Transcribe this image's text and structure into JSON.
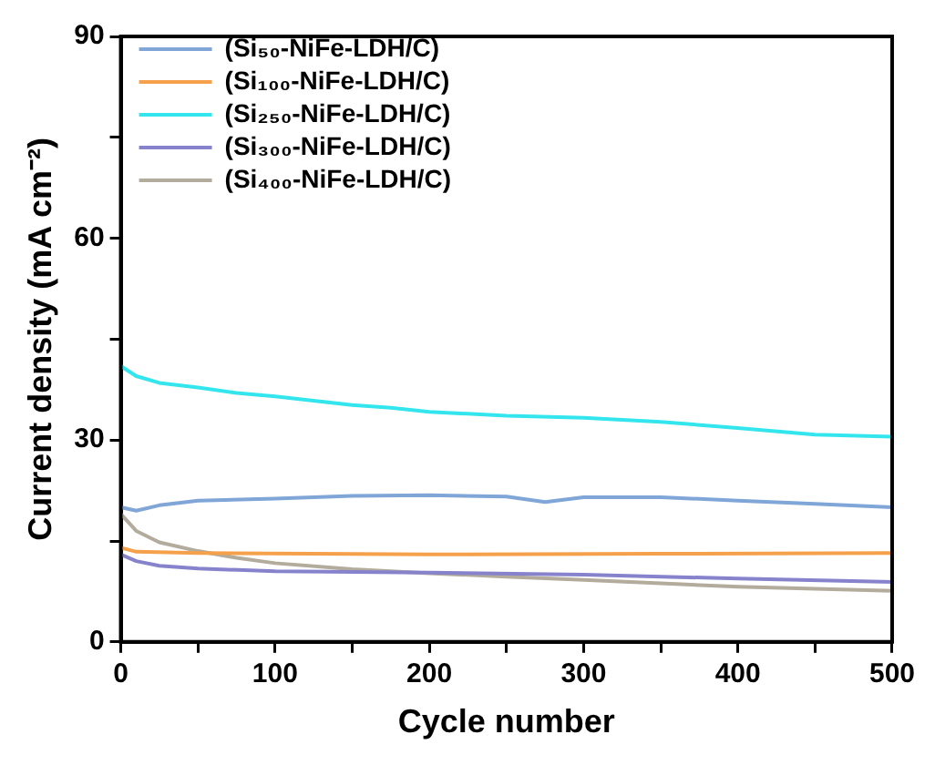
{
  "chart_data": {
    "type": "line",
    "xlabel": "Cycle number",
    "ylabel": "Current density (mA cm⁻²)",
    "xlim": [
      0,
      500
    ],
    "ylim": [
      0,
      90
    ],
    "xticks": [
      0,
      {
        "value": 50,
        "label": null
      },
      100,
      {
        "value": 150,
        "label": null
      },
      200,
      {
        "value": 250,
        "label": null
      },
      300,
      {
        "value": 350,
        "label": null
      },
      400,
      {
        "value": 450,
        "label": null
      },
      500
    ],
    "yticks": [
      0,
      {
        "value": 15,
        "label": null
      },
      30,
      {
        "value": 45,
        "label": null
      },
      60,
      {
        "value": 75,
        "label": null
      },
      90
    ],
    "grid": false,
    "legend": "top left",
    "marker": "none",
    "line_style": "solid",
    "series": [
      {
        "name": "(Si₅₀-NiFe-LDH/C)",
        "color": "#7fa6d6",
        "x": [
          0,
          10,
          25,
          50,
          100,
          150,
          200,
          250,
          275,
          300,
          350,
          400,
          450,
          500
        ],
        "values": [
          20,
          19.5,
          20.3,
          21,
          21.3,
          21.7,
          21.8,
          21.6,
          20.8,
          21.5,
          21.5,
          21,
          20.5,
          20
        ]
      },
      {
        "name": "(Si₁₀₀-NiFe-LDH/C)",
        "color": "#f5a04a",
        "x": [
          0,
          10,
          50,
          200,
          350,
          500
        ],
        "values": [
          14,
          13.4,
          13.2,
          13,
          13.1,
          13.2
        ]
      },
      {
        "name": "(Si₂₅₀-NiFe-LDH/C)",
        "color": "#33e6ee",
        "x": [
          0,
          10,
          25,
          50,
          75,
          100,
          150,
          175,
          200,
          250,
          300,
          350,
          400,
          450,
          500
        ],
        "values": [
          41,
          39.5,
          38.5,
          37.8,
          37,
          36.5,
          35.2,
          34.8,
          34.2,
          33.6,
          33.3,
          32.7,
          31.8,
          30.8,
          30.5
        ]
      },
      {
        "name": "(Si₃₀₀-NiFe-LDH/C)",
        "color": "#8683cc",
        "x": [
          0,
          10,
          25,
          50,
          100,
          200,
          300,
          400,
          500
        ],
        "values": [
          13,
          12,
          11.3,
          10.9,
          10.5,
          10.3,
          10,
          9.4,
          8.9
        ]
      },
      {
        "name": "(Si₄₀₀-NiFe-LDH/C)",
        "color": "#b3ab9c",
        "x": [
          0,
          10,
          25,
          50,
          75,
          100,
          150,
          200,
          250,
          300,
          350,
          400,
          450,
          500
        ],
        "values": [
          19,
          16.5,
          14.8,
          13.5,
          12.5,
          11.7,
          10.8,
          10.2,
          9.7,
          9.2,
          8.7,
          8.2,
          7.9,
          7.6
        ]
      }
    ]
  }
}
